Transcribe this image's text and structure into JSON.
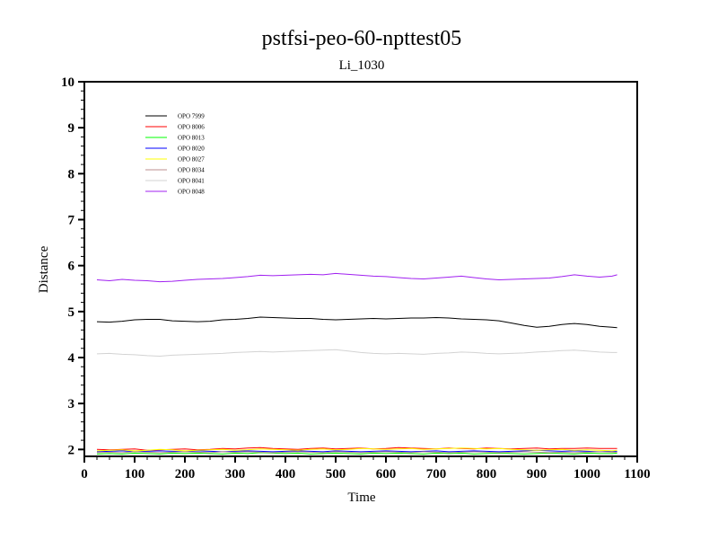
{
  "chart_data": {
    "type": "line",
    "title": "pstfsi-peo-60-npttest05",
    "subtitle": "Li_1030",
    "xlabel": "Time",
    "ylabel": "Distance",
    "xlim": [
      0,
      1100
    ],
    "ylim": [
      1.85,
      10
    ],
    "x_ticks": [
      0,
      100,
      200,
      300,
      400,
      500,
      600,
      700,
      800,
      900,
      1000,
      1100
    ],
    "y_ticks": [
      2,
      3,
      4,
      5,
      6,
      7,
      8,
      9,
      10
    ],
    "grid": false,
    "legend_position": "top-left",
    "x": [
      25,
      50,
      75,
      100,
      125,
      150,
      175,
      200,
      225,
      250,
      275,
      300,
      325,
      350,
      375,
      400,
      425,
      450,
      475,
      500,
      525,
      550,
      575,
      600,
      625,
      650,
      675,
      700,
      725,
      750,
      775,
      800,
      825,
      850,
      875,
      900,
      925,
      950,
      975,
      1000,
      1025,
      1050,
      1060
    ],
    "series": [
      {
        "name": "OPO 7999",
        "color": "#000000",
        "values": [
          4.78,
          4.77,
          4.79,
          4.82,
          4.83,
          4.83,
          4.8,
          4.79,
          4.78,
          4.79,
          4.82,
          4.83,
          4.85,
          4.88,
          4.87,
          4.86,
          4.85,
          4.85,
          4.83,
          4.82,
          4.83,
          4.84,
          4.85,
          4.84,
          4.85,
          4.86,
          4.86,
          4.87,
          4.86,
          4.84,
          4.83,
          4.82,
          4.8,
          4.75,
          4.7,
          4.66,
          4.68,
          4.72,
          4.74,
          4.72,
          4.68,
          4.66,
          4.65
        ]
      },
      {
        "name": "OPO 8006",
        "color": "#ff0000",
        "values": [
          2.0,
          1.99,
          2.0,
          2.01,
          1.98,
          1.99,
          2.0,
          2.01,
          1.99,
          2.0,
          2.02,
          2.01,
          2.03,
          2.04,
          2.02,
          2.01,
          2.0,
          2.02,
          2.03,
          2.01,
          2.02,
          2.03,
          2.01,
          2.02,
          2.04,
          2.03,
          2.02,
          2.01,
          2.03,
          2.02,
          2.01,
          2.03,
          2.02,
          2.01,
          2.02,
          2.03,
          2.01,
          2.02,
          2.02,
          2.03,
          2.02,
          2.02,
          2.02
        ]
      },
      {
        "name": "OPO 8013",
        "color": "#00ff00",
        "values": [
          1.9,
          1.91,
          1.9,
          1.92,
          1.91,
          1.9,
          1.92,
          1.91,
          1.92,
          1.91,
          1.9,
          1.92,
          1.91,
          1.93,
          1.92,
          1.91,
          1.92,
          1.9,
          1.91,
          1.92,
          1.91,
          1.9,
          1.92,
          1.91,
          1.92,
          1.91,
          1.9,
          1.92,
          1.91,
          1.92,
          1.9,
          1.91,
          1.92,
          1.91,
          1.9,
          1.91,
          1.92,
          1.91,
          1.9,
          1.92,
          1.91,
          1.91,
          1.92
        ]
      },
      {
        "name": "OPO 8020",
        "color": "#0000ff",
        "values": [
          1.95,
          1.96,
          1.97,
          1.95,
          1.96,
          1.97,
          1.96,
          1.95,
          1.97,
          1.96,
          1.95,
          1.96,
          1.97,
          1.96,
          1.95,
          1.96,
          1.97,
          1.96,
          1.95,
          1.97,
          1.96,
          1.95,
          1.96,
          1.97,
          1.96,
          1.95,
          1.96,
          1.97,
          1.95,
          1.96,
          1.97,
          1.96,
          1.95,
          1.96,
          1.97,
          1.98,
          1.97,
          1.96,
          1.97,
          1.96,
          1.95,
          1.96,
          1.96
        ]
      },
      {
        "name": "OPO 8027",
        "color": "#ffff00",
        "values": [
          1.97,
          1.98,
          1.99,
          1.97,
          1.98,
          2.0,
          1.99,
          1.97,
          1.98,
          1.99,
          2.0,
          1.98,
          1.99,
          2.01,
          2.0,
          1.99,
          1.98,
          2.0,
          2.01,
          1.99,
          2.0,
          2.02,
          2.01,
          2.0,
          2.01,
          2.02,
          2.0,
          2.01,
          2.02,
          2.03,
          2.02,
          2.01,
          2.02,
          2.0,
          1.99,
          1.98,
          1.99,
          2.0,
          1.98,
          1.99,
          1.98,
          1.97,
          1.98
        ]
      },
      {
        "name": "OPO 8034",
        "color": "#bc8f8f",
        "values": [
          1.93,
          1.94,
          1.93,
          1.95,
          1.94,
          1.93,
          1.94,
          1.95,
          1.94,
          1.93,
          1.95,
          1.94,
          1.95,
          1.94,
          1.93,
          1.94,
          1.95,
          1.94,
          1.93,
          1.95,
          1.94,
          1.93,
          1.94,
          1.95,
          1.94,
          1.93,
          1.95,
          1.94,
          1.93,
          1.94,
          1.95,
          1.94,
          1.93,
          1.94,
          1.95,
          1.94,
          1.93,
          1.94,
          1.93,
          1.94,
          1.95,
          1.94,
          1.94
        ]
      },
      {
        "name": "OPO 8041",
        "color": "#d3d3d3",
        "values": [
          4.08,
          4.09,
          4.07,
          4.06,
          4.04,
          4.03,
          4.05,
          4.06,
          4.07,
          4.08,
          4.09,
          4.11,
          4.12,
          4.13,
          4.12,
          4.13,
          4.14,
          4.15,
          4.16,
          4.17,
          4.14,
          4.11,
          4.09,
          4.08,
          4.09,
          4.08,
          4.07,
          4.09,
          4.1,
          4.12,
          4.11,
          4.09,
          4.08,
          4.09,
          4.1,
          4.12,
          4.13,
          4.15,
          4.16,
          4.14,
          4.12,
          4.11,
          4.11
        ]
      },
      {
        "name": "OPO 8048",
        "color": "#a020f0",
        "values": [
          5.69,
          5.67,
          5.7,
          5.68,
          5.67,
          5.65,
          5.66,
          5.68,
          5.7,
          5.71,
          5.72,
          5.74,
          5.76,
          5.79,
          5.78,
          5.79,
          5.8,
          5.81,
          5.8,
          5.83,
          5.81,
          5.79,
          5.77,
          5.76,
          5.74,
          5.72,
          5.71,
          5.73,
          5.75,
          5.77,
          5.74,
          5.71,
          5.69,
          5.7,
          5.71,
          5.72,
          5.73,
          5.76,
          5.8,
          5.77,
          5.75,
          5.77,
          5.8
        ]
      }
    ]
  }
}
